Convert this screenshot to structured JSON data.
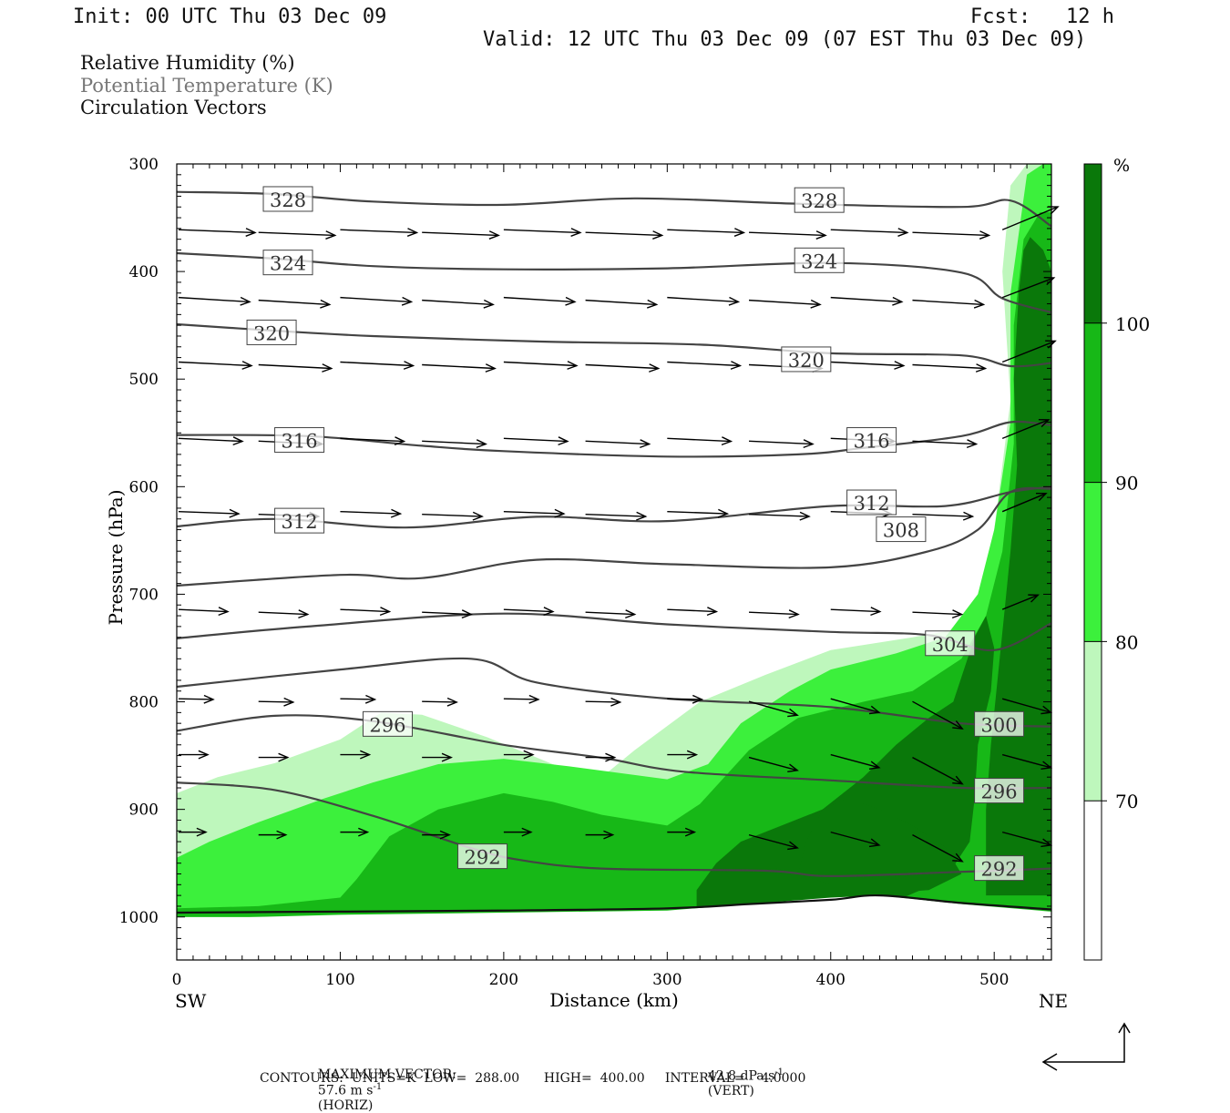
{
  "header": {
    "init": "Init: 00 UTC Thu 03 Dec 09",
    "fcst_label": "Fcst:",
    "fcst_value": "12 h",
    "valid": "Valid: 12 UTC Thu 03 Dec 09 (07 EST Thu 03 Dec 09)"
  },
  "fields": [
    {
      "label": "Relative Humidity (%)",
      "color": "#111111"
    },
    {
      "label": "Potential Temperature (K)",
      "color": "#777777"
    },
    {
      "label": "Circulation Vectors",
      "color": "#111111"
    }
  ],
  "footer": {
    "max_vector_label": "MAXIMUM VECTOR:",
    "max_horiz": "57.6 m s",
    "horiz_exp": "-1",
    "horiz_tag": "(HORIZ)",
    "max_vert": "42.8 dPa s",
    "vert_exp": "-1",
    "vert_tag": "(VERT)",
    "contours": "CONTOURS:  UNITS=K  LOW=  288.00      HIGH=  400.00     INTERVAL=    4.0000"
  },
  "colors": {
    "rh_70_80": "#bef7bc",
    "rh_80_90": "#3cf03c",
    "rh_90_100": "#17b817",
    "rh_100": "#0a780a",
    "theta_line": "#444444",
    "vector": "#000000"
  },
  "chart_data": {
    "type": "cross-section",
    "xlabel": "Distance (km)",
    "ylabel": "Pressure (hPa)",
    "xlim": [
      0,
      535
    ],
    "ylim": [
      1040,
      300
    ],
    "x_ticks": [
      0,
      100,
      200,
      300,
      400,
      500
    ],
    "y_ticks": [
      300,
      400,
      500,
      600,
      700,
      800,
      900,
      1000
    ],
    "left_end_label": "SW",
    "right_end_label": "NE",
    "colorbar": {
      "unit": "%",
      "levels": [
        70,
        80,
        90,
        100
      ]
    },
    "theta_contours": [
      {
        "label": "328",
        "points": [
          [
            0,
            326
          ],
          [
            60,
            328
          ],
          [
            120,
            335
          ],
          [
            200,
            338
          ],
          [
            280,
            332
          ],
          [
            380,
            337
          ],
          [
            480,
            340
          ],
          [
            510,
            334
          ],
          [
            535,
            358
          ]
        ],
        "labels_at": [
          [
            68,
            333
          ],
          [
            393,
            334
          ]
        ]
      },
      {
        "label": "324",
        "points": [
          [
            0,
            383
          ],
          [
            60,
            388
          ],
          [
            120,
            395
          ],
          [
            200,
            398
          ],
          [
            300,
            397
          ],
          [
            400,
            392
          ],
          [
            480,
            401
          ],
          [
            505,
            425
          ],
          [
            535,
            438
          ]
        ],
        "labels_at": [
          [
            68,
            392
          ],
          [
            393,
            390
          ]
        ]
      },
      {
        "label": "320",
        "points": [
          [
            0,
            449
          ],
          [
            60,
            455
          ],
          [
            120,
            460
          ],
          [
            220,
            465
          ],
          [
            320,
            468
          ],
          [
            400,
            476
          ],
          [
            480,
            478
          ],
          [
            510,
            488
          ],
          [
            535,
            485
          ]
        ],
        "labels_at": [
          [
            58,
            457
          ],
          [
            385,
            482
          ]
        ]
      },
      {
        "label": "316",
        "points": [
          [
            0,
            552
          ],
          [
            80,
            553
          ],
          [
            150,
            562
          ],
          [
            200,
            567
          ],
          [
            300,
            572
          ],
          [
            380,
            570
          ],
          [
            420,
            564
          ],
          [
            480,
            553
          ],
          [
            510,
            540
          ],
          [
            535,
            543
          ]
        ],
        "labels_at": [
          [
            75,
            557
          ],
          [
            425,
            557
          ]
        ]
      },
      {
        "label": "312",
        "points": [
          [
            0,
            637
          ],
          [
            60,
            630
          ],
          [
            140,
            638
          ],
          [
            220,
            628
          ],
          [
            300,
            632
          ],
          [
            400,
            618
          ],
          [
            470,
            618
          ],
          [
            510,
            605
          ],
          [
            535,
            600
          ]
        ],
        "labels_at": [
          [
            75,
            632
          ],
          [
            425,
            615
          ]
        ]
      },
      {
        "label": "308",
        "points": [
          [
            0,
            692
          ],
          [
            100,
            682
          ],
          [
            150,
            685
          ],
          [
            220,
            668
          ],
          [
            300,
            672
          ],
          [
            400,
            675
          ],
          [
            460,
            660
          ],
          [
            490,
            640
          ],
          [
            510,
            605
          ],
          [
            535,
            602
          ]
        ],
        "labels_at": [
          [
            443,
            640
          ]
        ]
      },
      {
        "label": "304",
        "points": [
          [
            0,
            741
          ],
          [
            80,
            730
          ],
          [
            200,
            718
          ],
          [
            300,
            728
          ],
          [
            400,
            735
          ],
          [
            460,
            738
          ],
          [
            500,
            752
          ],
          [
            535,
            727
          ]
        ],
        "labels_at": [
          [
            473,
            746
          ]
        ]
      },
      {
        "label": "300",
        "points": [
          [
            0,
            786
          ],
          [
            100,
            770
          ],
          [
            180,
            760
          ],
          [
            220,
            782
          ],
          [
            300,
            797
          ],
          [
            400,
            805
          ],
          [
            480,
            820
          ],
          [
            535,
            823
          ]
        ],
        "labels_at": [
          [
            503,
            821
          ]
        ]
      },
      {
        "label": "296",
        "points": [
          [
            0,
            827
          ],
          [
            60,
            813
          ],
          [
            120,
            818
          ],
          [
            200,
            840
          ],
          [
            260,
            852
          ],
          [
            310,
            865
          ],
          [
            400,
            873
          ],
          [
            480,
            880
          ],
          [
            535,
            880
          ]
        ],
        "labels_at": [
          [
            129,
            821
          ]
        ]
      },
      {
        "label": "296",
        "points": [
          [
            510,
            880
          ]
        ],
        "labels_at": [
          [
            503,
            883
          ]
        ]
      },
      {
        "label": "292",
        "points": [
          [
            0,
            875
          ],
          [
            60,
            882
          ],
          [
            120,
            906
          ],
          [
            180,
            936
          ],
          [
            210,
            947
          ],
          [
            260,
            955
          ],
          [
            360,
            957
          ],
          [
            400,
            962
          ],
          [
            480,
            958
          ],
          [
            535,
            955
          ]
        ],
        "labels_at": [
          [
            187,
            944
          ],
          [
            503,
            955
          ]
        ]
      }
    ]
  }
}
